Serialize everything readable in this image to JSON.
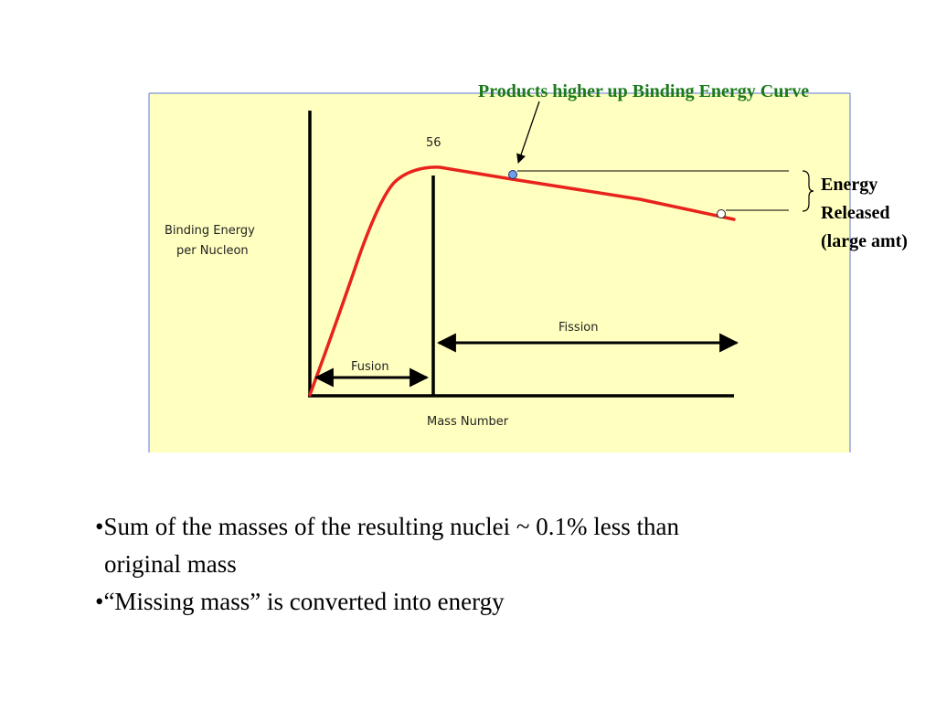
{
  "diagram": {
    "callout_title": "Products higher up Binding Energy Curve",
    "y_axis_label_line1": "Binding Energy",
    "y_axis_label_line2": "per Nucleon",
    "x_axis_label": "Mass Number",
    "peak_label": "56",
    "fusion_label": "Fusion",
    "fission_label": "Fission",
    "energy_label_line1": "Energy",
    "energy_label_line2": "Released",
    "energy_label_line3": "(large amt)",
    "colors": {
      "panel_bg": "#ffffc0",
      "panel_border": "#5b79d8",
      "curve": "#e8231c",
      "callout_text": "#1a7a1a",
      "marker_fill": "#6f9ee8"
    }
  },
  "bullets": [
    {
      "dot": "•",
      "line1": "Sum of the masses of the resulting nuclei ~ 0.1% less than",
      "line2": "original mass"
    },
    {
      "dot": "•",
      "line1": "“Missing mass” is converted into energy"
    }
  ]
}
